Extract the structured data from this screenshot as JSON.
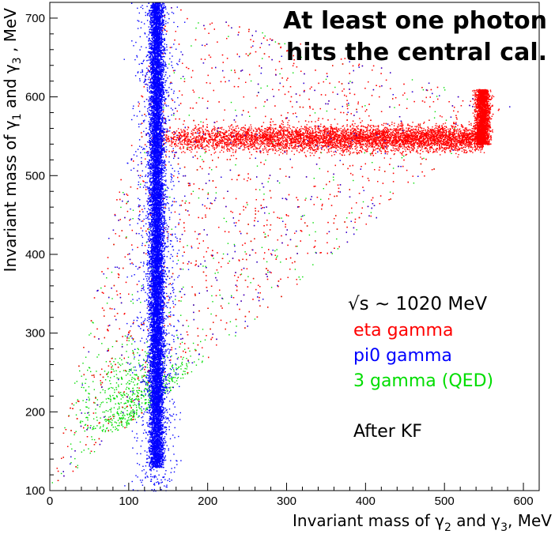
{
  "chart_data": {
    "type": "scatter",
    "title_lines": [
      "At least one photon",
      "hits the central cal."
    ],
    "xlabel": {
      "main": "Invariant mass of γ",
      "sub1": "2",
      "mid": " and γ",
      "sub2": "3",
      "tail": ",  MeV"
    },
    "ylabel": {
      "main": "Invariant mass of γ",
      "sub1": "1",
      "mid": " and γ",
      "sub2": "3",
      "tail": " ,  MeV"
    },
    "xlim": [
      0,
      620
    ],
    "ylim": [
      100,
      720
    ],
    "x_ticks": [
      0,
      100,
      200,
      300,
      400,
      500,
      600
    ],
    "x_tick_labels": [
      "0",
      "100",
      "200",
      "300",
      "400",
      "500",
      "600"
    ],
    "y_ticks": [
      100,
      200,
      300,
      400,
      500,
      600,
      700
    ],
    "y_tick_labels": [
      "100",
      "200",
      "300",
      "400",
      "500",
      "600",
      "700"
    ],
    "grid": false,
    "legend_position": "bottom-right",
    "annotation_sqrt_s": "√s ~ 1020 MeV",
    "annotation_note": "After KF",
    "series": [
      {
        "name": "eta gamma",
        "color": "#ff0000",
        "band_y": 548,
        "band_x_range": [
          140,
          550
        ],
        "vertical_band_x": 548,
        "vertical_band_y_range": [
          540,
          610
        ],
        "region_vertices": [
          [
            0,
            100
          ],
          [
            585,
            590
          ],
          [
            140,
            720
          ]
        ]
      },
      {
        "name": "pi0 gamma",
        "color": "#0000ff",
        "band_x": 135,
        "band_y_range": [
          100,
          720
        ]
      },
      {
        "name": "3 gamma (QED)",
        "color": "#00dd00",
        "density_peak_x": 140,
        "density_peak_y": 180,
        "region_vertices": [
          [
            0,
            100
          ],
          [
            585,
            590
          ],
          [
            140,
            720
          ]
        ]
      }
    ]
  }
}
